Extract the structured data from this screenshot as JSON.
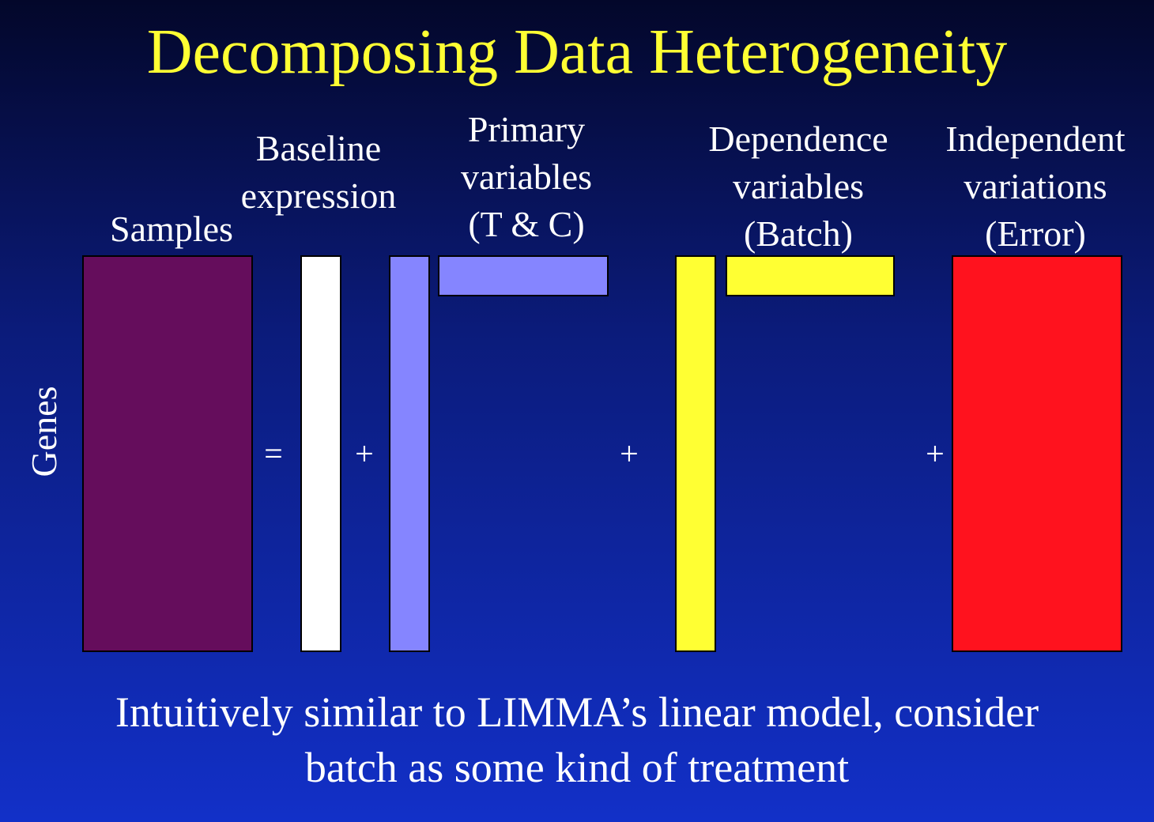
{
  "title": "Decomposing Data Heterogeneity",
  "axis": {
    "rows_label": "Genes"
  },
  "components": {
    "samples": {
      "label": [
        "Samples"
      ],
      "color": "#650d5c"
    },
    "baseline": {
      "label": [
        "Baseline",
        "expression"
      ],
      "color": "#ffffff"
    },
    "primary": {
      "label": [
        "Primary",
        "variables",
        "(T & C)"
      ],
      "color": "#8585ff"
    },
    "dependence": {
      "label": [
        "Dependence",
        "variables",
        "(Batch)"
      ],
      "color": "#ffff33"
    },
    "independent": {
      "label": [
        "Independent",
        "variations",
        "(Error)"
      ],
      "color": "#ff121e"
    }
  },
  "operators": {
    "equals": "=",
    "plus": "+"
  },
  "caption": [
    "Intuitively similar to LIMMA’s linear model, consider",
    "batch as some kind of treatment"
  ]
}
